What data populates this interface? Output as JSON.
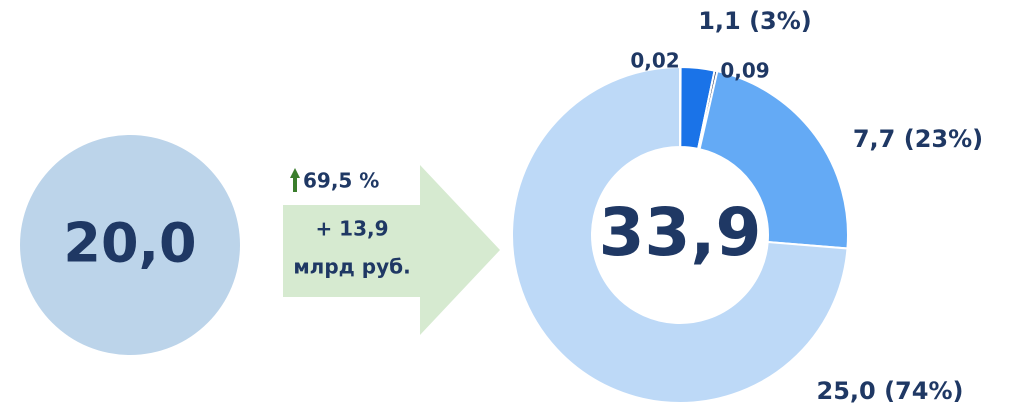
{
  "chart_data": {
    "type": "donut",
    "values": [
      0.02,
      1.1,
      0.09,
      7.7,
      25.0
    ],
    "value_labels": [
      "0,02",
      "1,1 (3%)",
      "0,09",
      "7,7 (23%)",
      "25,0 (74%)"
    ],
    "colors": [
      "#1f3864",
      "#1a73e8",
      "#1f3864",
      "#64aaf5",
      "#bdd9f7"
    ],
    "center_label": "33,9"
  },
  "left_circle": {
    "label": "20,0"
  },
  "arrow": {
    "change": "69,5 %",
    "increase": "+ 13,9",
    "unit": "млрд руб."
  }
}
